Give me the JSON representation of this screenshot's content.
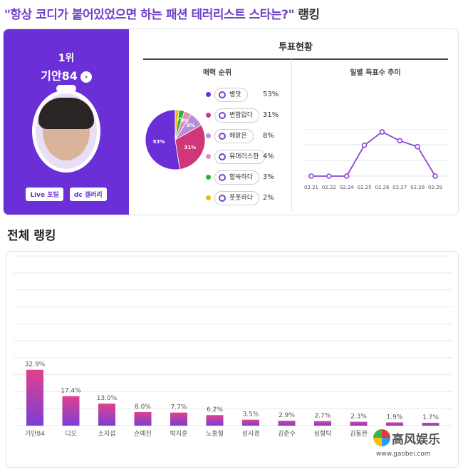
{
  "headline": {
    "quote": "\"항상 코디가 붙어있었으면 하는 패션 테러리스트 스타는?\"",
    "suffix": " 랭킹"
  },
  "winner": {
    "rank": "1위",
    "name": "기안84",
    "buttons": [
      "Live 포팅",
      "dc 갤러리"
    ]
  },
  "vote_status": {
    "title": "투표현황",
    "pie_title": "매력 순위",
    "line_title": "일별 득표수 추이"
  },
  "section_title": "전체 랭킹",
  "watermark": {
    "title": "高风娱乐",
    "url": "www.gaobei.com"
  },
  "chart_data": [
    {
      "type": "pie",
      "title": "매력 순위",
      "slices": [
        {
          "label": "병맛",
          "value": 53,
          "display": "53%",
          "color": "#6a2fd6"
        },
        {
          "label": "변함없다",
          "value": 31,
          "display": "31%",
          "color": "#d1357a"
        },
        {
          "label": "해맑은",
          "value": 8,
          "display": "8%",
          "color": "#b48ed8"
        },
        {
          "label": "유머러스한",
          "value": 4,
          "display": "4%",
          "color": "#e08fb5"
        },
        {
          "label": "할쑥하다",
          "value": 3,
          "display": "3%",
          "color": "#2fb02f"
        },
        {
          "label": "풋풋하다",
          "value": 2,
          "display": "2%",
          "color": "#f2b705"
        }
      ],
      "slice_labels": [
        "53%",
        "31%",
        "8%",
        "4%",
        "3%"
      ]
    },
    {
      "type": "line",
      "title": "일별 득표수 추이",
      "categories": [
        "02.21",
        "02.22",
        "02.24",
        "02.25",
        "02.26",
        "02.27",
        "02.28",
        "02.29"
      ],
      "values": [
        0,
        0,
        0,
        42,
        60,
        48,
        40,
        0
      ],
      "color": "#8b45d8"
    },
    {
      "type": "bar",
      "categories": [
        "기안84",
        "디오",
        "소지섭",
        "손예진",
        "박지훈",
        "노홍철",
        "성시경",
        "김준수",
        "심형탁",
        "김동완",
        "",
        ""
      ],
      "values": [
        32.9,
        17.4,
        13.0,
        8.0,
        7.7,
        6.2,
        3.5,
        2.9,
        2.7,
        2.3,
        1.9,
        1.7
      ],
      "value_labels": [
        "32.9%",
        "17.4%",
        "13.0%",
        "8.0%",
        "7.7%",
        "6.2%",
        "3.5%",
        "2.9%",
        "2.7%",
        "2.3%",
        "1.9%",
        "1.7%"
      ],
      "ylim": [
        0,
        100
      ],
      "grid": true,
      "colors": {
        "top": "#e0408f",
        "bottom": "#7a3fd4"
      }
    }
  ]
}
